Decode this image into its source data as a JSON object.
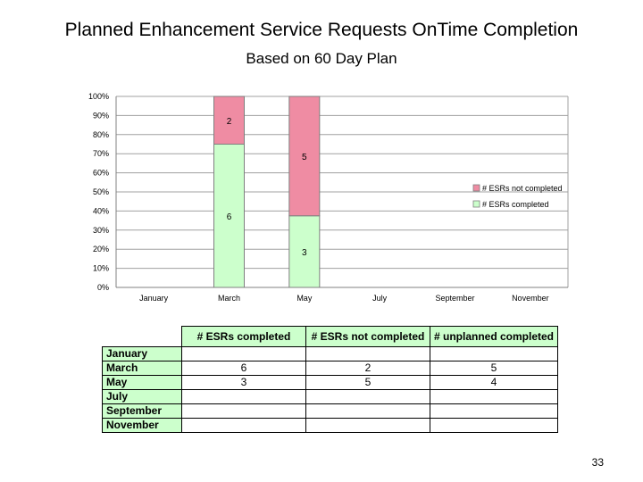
{
  "slide": {
    "title": "Planned Enhancement Service Requests OnTime Completion",
    "subtitle": "Based on 60 Day Plan",
    "page_number": "33"
  },
  "chart_data": {
    "type": "bar",
    "stacked": "percent",
    "categories": [
      "January",
      "March",
      "May",
      "July",
      "September",
      "November"
    ],
    "series": [
      {
        "name": "# ESRs completed",
        "color": "#ccffcc",
        "values": [
          null,
          6,
          3,
          null,
          null,
          null
        ]
      },
      {
        "name": "# ESRs not completed",
        "color": "#ef8ca3",
        "values": [
          null,
          2,
          5,
          null,
          null,
          null
        ]
      }
    ],
    "y_ticks": [
      "0%",
      "10%",
      "20%",
      "30%",
      "40%",
      "50%",
      "60%",
      "70%",
      "80%",
      "90%",
      "100%"
    ],
    "ylim": [
      0,
      100
    ],
    "grid": true,
    "legend_position": "right"
  },
  "table": {
    "columns": [
      "# ESRs completed",
      "# ESRs not completed",
      "# unplanned completed"
    ],
    "rows": [
      {
        "label": "January",
        "cells": [
          "",
          "",
          ""
        ]
      },
      {
        "label": "March",
        "cells": [
          "6",
          "2",
          "5"
        ]
      },
      {
        "label": "May",
        "cells": [
          "3",
          "5",
          "4"
        ]
      },
      {
        "label": "July",
        "cells": [
          "",
          "",
          ""
        ]
      },
      {
        "label": "September",
        "cells": [
          "",
          "",
          ""
        ]
      },
      {
        "label": "November",
        "cells": [
          "",
          "",
          ""
        ]
      }
    ]
  }
}
